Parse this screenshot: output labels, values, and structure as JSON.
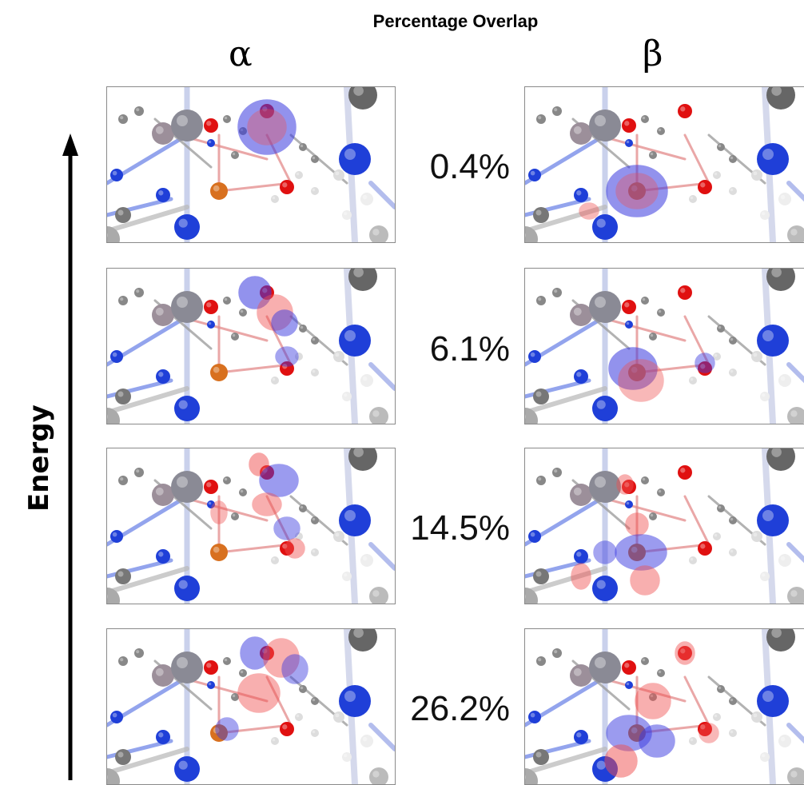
{
  "title": "Percentage Overlap",
  "columns": {
    "alpha": "α",
    "beta": "β"
  },
  "axis_label": "Energy",
  "rows": [
    {
      "overlap": "0.4%",
      "alpha_orbital": "Fe-centered lobe (blue)",
      "beta_orbital": "Fe-centered lobe (blue)"
    },
    {
      "overlap": "6.1%",
      "alpha_orbital": "mixed lobes",
      "beta_orbital": "mixed lobes"
    },
    {
      "overlap": "14.5%",
      "alpha_orbital": "mixed lobes",
      "beta_orbital": "mixed lobes"
    },
    {
      "overlap": "26.2%",
      "alpha_orbital": "mixed lobes",
      "beta_orbital": "mixed lobes"
    }
  ],
  "colors": {
    "blue_atom": "#1f3fd8",
    "red_atom": "#e01010",
    "orange_atom": "#d8701f",
    "grey_atom": "#8a8a95",
    "blue_lobe": "#3a3ae0",
    "red_lobe": "#f05050"
  }
}
